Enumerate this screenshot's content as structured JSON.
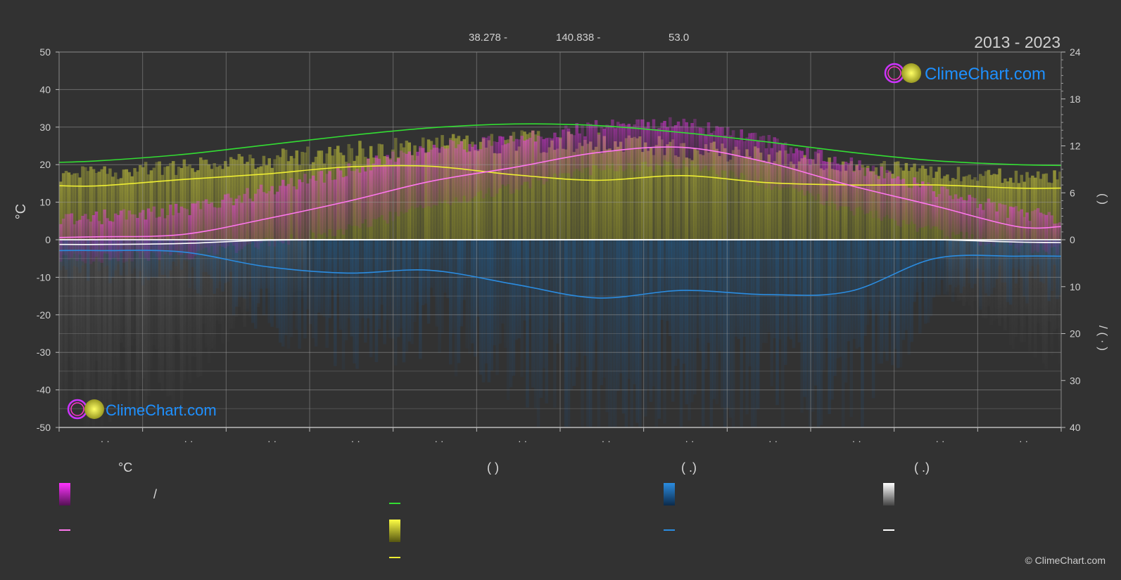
{
  "header": {
    "latitude": "38.278 -",
    "longitude": "140.838 -",
    "elevation": "53.0",
    "years": "2013 - 2023"
  },
  "brand": {
    "name": "ClimeChart.com",
    "copyright": "© ClimeChart.com",
    "text_color": "#1e90ff"
  },
  "chart_data": {
    "type": "area",
    "months": [
      "· ·",
      "· ·",
      "· ·",
      "· ·",
      "· ·",
      "· ·",
      "· ·",
      "· ·",
      "· ·",
      "· ·",
      "· ·",
      "· ·"
    ],
    "left_axis": {
      "label": "°C",
      "min": -50,
      "max": 50,
      "ticks": [
        50,
        40,
        30,
        20,
        10,
        0,
        -10,
        -20,
        -30,
        -40,
        -50
      ]
    },
    "right_axis_top": {
      "label": "(   )",
      "min": 0,
      "max": 24,
      "ticks": [
        24,
        18,
        12,
        6,
        0
      ]
    },
    "right_axis_bottom": {
      "label": "/ (  ·  )",
      "min": 0,
      "max": 40,
      "ticks": [
        10,
        20,
        30,
        40
      ]
    },
    "x_day": [
      0,
      15,
      45,
      75,
      105,
      135,
      166,
      196,
      227,
      258,
      288,
      319,
      349,
      365
    ],
    "series": [
      {
        "key": "daylight",
        "color": "#33dd33",
        "axis": "hours",
        "values": [
          9.9,
          10.1,
          10.9,
          12.1,
          13.3,
          14.3,
          14.8,
          14.6,
          13.7,
          12.5,
          11.2,
          10.1,
          9.6,
          9.5
        ]
      },
      {
        "key": "sunshine",
        "color": "#eeee33",
        "axis": "hours",
        "values": [
          6.9,
          6.9,
          7.7,
          8.4,
          9.3,
          9.4,
          8.3,
          7.6,
          8.2,
          7.3,
          7.0,
          7.0,
          6.6,
          6.6
        ]
      },
      {
        "key": "temperature_mean",
        "color": "#ff77ee",
        "axis": "celsius",
        "values": [
          0.6,
          0.8,
          1.4,
          5.5,
          10.2,
          15.5,
          19.3,
          23.2,
          24.6,
          20.6,
          14.5,
          9.0,
          3.5,
          3.5
        ]
      },
      {
        "key": "snowfall_mean",
        "color": "#ffffff",
        "axis": "precip",
        "values": [
          1.0,
          1.0,
          0.8,
          0.1,
          0,
          0,
          0,
          0,
          0,
          0,
          0,
          0,
          0.5,
          0.6
        ]
      },
      {
        "key": "precipitation_mean",
        "color": "#2b8ce0",
        "axis": "precip",
        "values": [
          2.3,
          2.3,
          2.6,
          5.7,
          7.1,
          6.5,
          9.5,
          12.4,
          10.8,
          11.7,
          11.0,
          4.0,
          3.5,
          3.5
        ]
      }
    ],
    "temperature_band": {
      "color": "#dd22dd",
      "max": [
        5,
        6,
        8,
        13,
        19,
        24,
        27,
        30,
        31,
        26,
        20,
        13,
        7,
        6
      ],
      "min": [
        -5,
        -5,
        -4,
        -1,
        3,
        9,
        14,
        19,
        20,
        15,
        8,
        2,
        -2,
        -3
      ]
    }
  },
  "legend": {
    "groups": [
      {
        "heading": "°C",
        "text": "/",
        "band_color": "#ee22ee",
        "line_color": "#ff77ee"
      },
      {
        "heading": "(          )",
        "line_color": "#33dd33",
        "band_color": "#eeee33",
        "line2_color": "#eeee33"
      },
      {
        "heading": "(   .)",
        "band_color": "#1e88e5",
        "line_color": "#2b8ce0"
      },
      {
        "heading": "(   .)",
        "band_color": "#ffffff",
        "line_color": "#ffffff"
      }
    ]
  }
}
